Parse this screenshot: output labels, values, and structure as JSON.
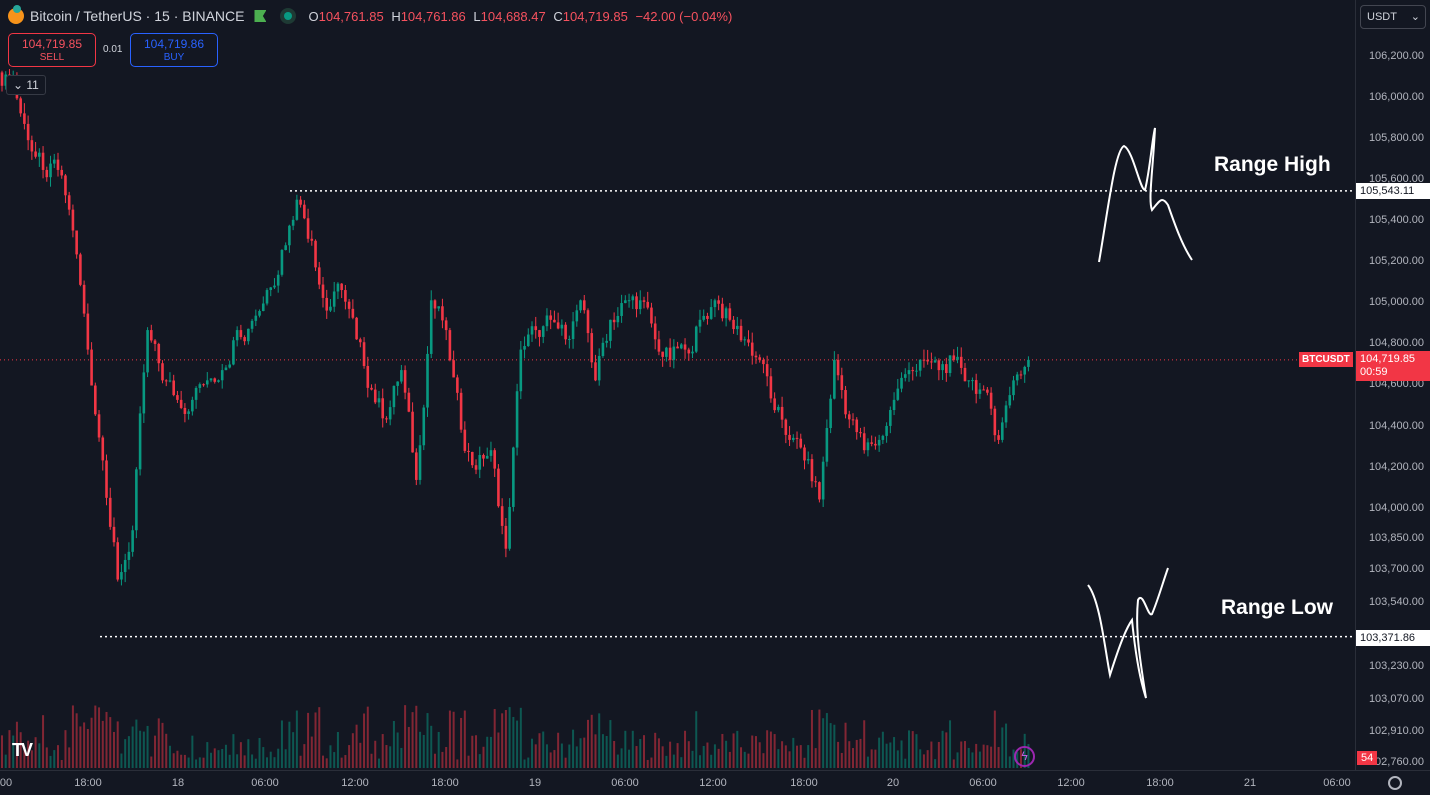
{
  "header": {
    "symbol": "Bitcoin / TetherUS · 15 · BINANCE",
    "o_label": "O",
    "o": "104,761.85",
    "h_label": "H",
    "h": "104,761.86",
    "l_label": "L",
    "l": "104,688.47",
    "c_label": "C",
    "c": "104,719.85",
    "change": "−42.00 (−0.04%)"
  },
  "trade": {
    "sell_price": "104,719.85",
    "sell_label": "SELL",
    "qty": "0.01",
    "buy_price": "104,719.86",
    "buy_label": "BUY"
  },
  "indicators_toggle": "11",
  "currency_select": "USDT",
  "current_price": {
    "symbol": "BTCUSDT",
    "price": "104,719.85",
    "countdown": "00:59",
    "color": "#f23645"
  },
  "range_high": {
    "label": "Range High",
    "price": "105,543.11"
  },
  "range_low": {
    "label": "Range Low",
    "price": "103,371.86"
  },
  "volume_badge": "54",
  "chart_data": {
    "type": "candlestick",
    "interval": "15",
    "price_ticks": [
      "106,200.00",
      "106,000.00",
      "105,800.00",
      "105,600.00",
      "105,400.00",
      "105,200.00",
      "105,000.00",
      "104,800.00",
      "104,600.00",
      "104,400.00",
      "104,200.00",
      "104,000.00",
      "103,850.00",
      "103,700.00",
      "103,540.00",
      "103,230.00",
      "103,070.00",
      "102,910.00",
      "102,760.00"
    ],
    "time_ticks": [
      "00",
      "18:00",
      "18",
      "06:00",
      "12:00",
      "18:00",
      "19",
      "06:00",
      "12:00",
      "18:00",
      "20",
      "06:00",
      "12:00",
      "18:00",
      "21",
      "06:00"
    ],
    "hourly_close_start": "17 12:00",
    "hourly_close": [
      106080,
      105790,
      105645,
      105645,
      105350,
      104770,
      104230,
      103650,
      103890,
      104865,
      104620,
      104525,
      104525,
      104620,
      104670,
      104865,
      104910,
      105060,
      105255,
      105500,
      105300,
      104960,
      105060,
      104820,
      104575,
      104430,
      104670,
      104135,
      105010,
      104865,
      104380,
      104185,
      104280,
      103800,
      104770,
      104865,
      104915,
      104820,
      105010,
      104620,
      104915,
      105010,
      105010,
      104820,
      104720,
      104770,
      104915,
      105010,
      104915,
      104820,
      104720,
      104475,
      104330,
      104230,
      104040,
      104720,
      104430,
      104280,
      104330,
      104525,
      104670,
      104720,
      104670,
      104720,
      104620,
      104575,
      104330,
      104620,
      104719.85
    ],
    "colors": {
      "up": "#089981",
      "down": "#f23645"
    }
  }
}
